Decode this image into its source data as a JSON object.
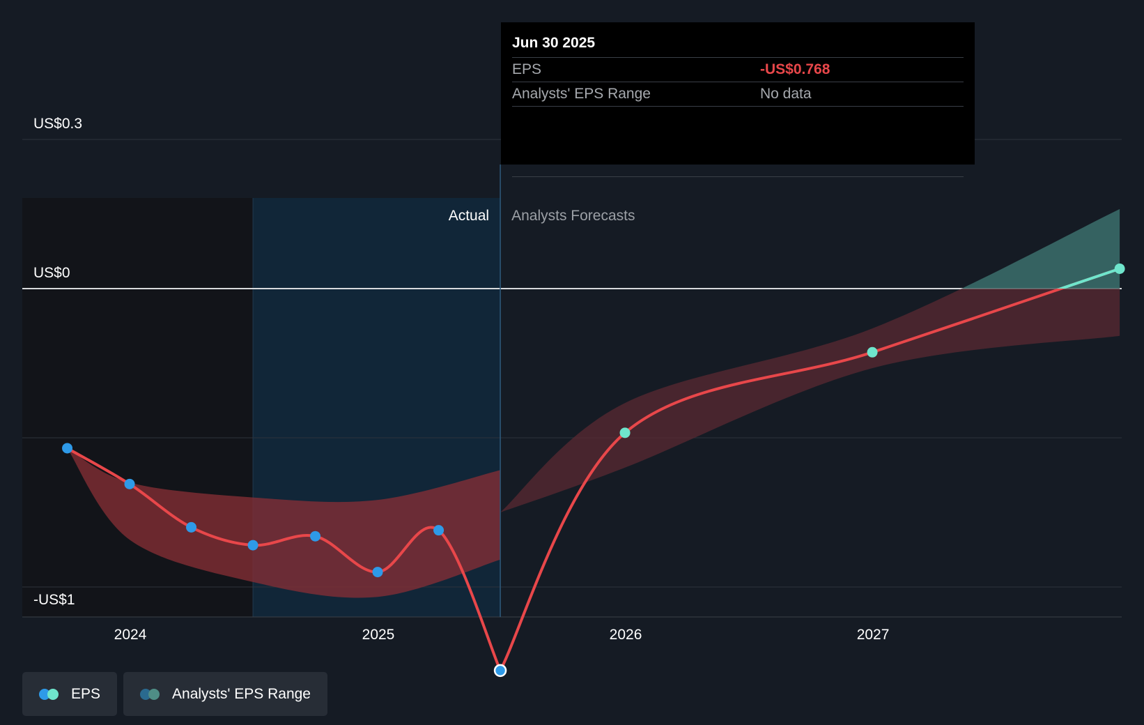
{
  "chart_data": {
    "type": "line",
    "xaxis": {
      "ticks": [
        "2024",
        "2025",
        "2026",
        "2027"
      ]
    },
    "yaxis": {
      "labels": [
        "US$0.3",
        "US$0",
        "-US$1"
      ],
      "gridlines": [
        0.3,
        0,
        -0.3,
        -0.6
      ]
    },
    "regions": {
      "actual_label": "Actual",
      "forecast_label": "Analysts Forecasts"
    },
    "series": [
      {
        "name": "EPS",
        "kind": "actual",
        "points": [
          {
            "date": "2023-09-30",
            "value": -0.321
          },
          {
            "date": "2023-12-31",
            "value": -0.393
          },
          {
            "date": "2024-03-31",
            "value": -0.48
          },
          {
            "date": "2024-06-30",
            "value": -0.516
          },
          {
            "date": "2024-09-30",
            "value": -0.498
          },
          {
            "date": "2024-12-31",
            "value": -0.57
          },
          {
            "date": "2025-03-31",
            "value": -0.486
          },
          {
            "date": "2025-06-30",
            "value": -0.768
          }
        ]
      },
      {
        "name": "EPS",
        "kind": "forecast",
        "points": [
          {
            "date": "2025-06-30",
            "value": -0.768
          },
          {
            "date": "2025-12-31",
            "value": -0.29
          },
          {
            "date": "2026-12-31",
            "value": -0.128
          },
          {
            "date": "2027-12-31",
            "value": 0.04
          }
        ]
      }
    ],
    "ranges": [
      {
        "name": "Analysts' EPS Range",
        "kind": "actual",
        "points": [
          {
            "date": "2023-09-30",
            "low": -0.321,
            "high": -0.321
          },
          {
            "date": "2023-12-31",
            "low": -0.505,
            "high": -0.39
          },
          {
            "date": "2024-06-30",
            "low": -0.59,
            "high": -0.42
          },
          {
            "date": "2024-12-31",
            "low": -0.62,
            "high": -0.425
          },
          {
            "date": "2025-06-30",
            "low": -0.545,
            "high": -0.365
          }
        ]
      },
      {
        "name": "Analysts' EPS Range",
        "kind": "forecast",
        "points": [
          {
            "date": "2025-06-30",
            "low": -0.45,
            "high": -0.45
          },
          {
            "date": "2025-12-31",
            "low": -0.36,
            "high": -0.23
          },
          {
            "date": "2026-12-31",
            "low": -0.16,
            "high": -0.08
          },
          {
            "date": "2027-12-31",
            "low": -0.095,
            "high": 0.16
          }
        ]
      }
    ],
    "tooltip": {
      "date": "Jun 30 2025",
      "rows": [
        {
          "label": "EPS",
          "value": "-US$0.768"
        },
        {
          "label": "Analysts' EPS Range",
          "value": "No data"
        }
      ]
    },
    "legend": [
      {
        "label": "EPS"
      },
      {
        "label": "Analysts' EPS Range"
      }
    ]
  },
  "colors": {
    "background": "#151b24",
    "eps_line": "#e8474a",
    "actual_dot": "#2e9ae8",
    "forecast_dot": "#6fe5cc",
    "range_actual": "#8a2f36",
    "range_forecast_neg": "#5a2a31",
    "range_forecast_pos": "#3b6e6c",
    "actual_highlight": "#112638"
  }
}
